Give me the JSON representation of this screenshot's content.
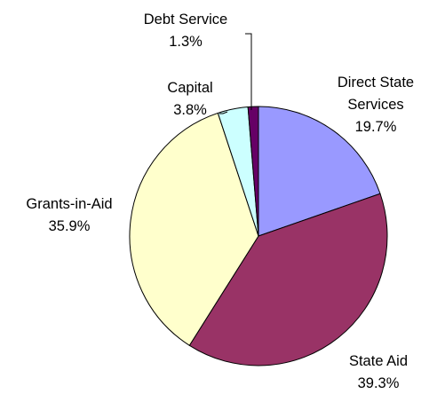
{
  "chart_data": {
    "type": "pie",
    "slices": [
      {
        "name": "Direct State Services",
        "value": 19.7,
        "value_label": "19.7%",
        "color": "#9999FF",
        "label_lines": [
          "Direct State",
          "Services",
          "19.7%"
        ]
      },
      {
        "name": "State Aid",
        "value": 39.3,
        "value_label": "39.3%",
        "color": "#993366",
        "label_lines": [
          "State Aid",
          "39.3%"
        ]
      },
      {
        "name": "Grants-in-Aid",
        "value": 35.9,
        "value_label": "35.9%",
        "color": "#FFFFCC",
        "label_lines": [
          "Grants-in-Aid",
          "35.9%"
        ]
      },
      {
        "name": "Capital",
        "value": 3.8,
        "value_label": "3.8%",
        "color": "#CCFFFF",
        "label_lines": [
          "Capital",
          "3.8%"
        ]
      },
      {
        "name": "Debt Service",
        "value": 1.3,
        "value_label": "1.3%",
        "color": "#660066",
        "label_lines": [
          "Debt Service",
          "1.3%"
        ]
      }
    ],
    "start_angle_deg": 0,
    "direction": "clockwise",
    "legend": "none",
    "slice_outline_color": "#000000"
  }
}
